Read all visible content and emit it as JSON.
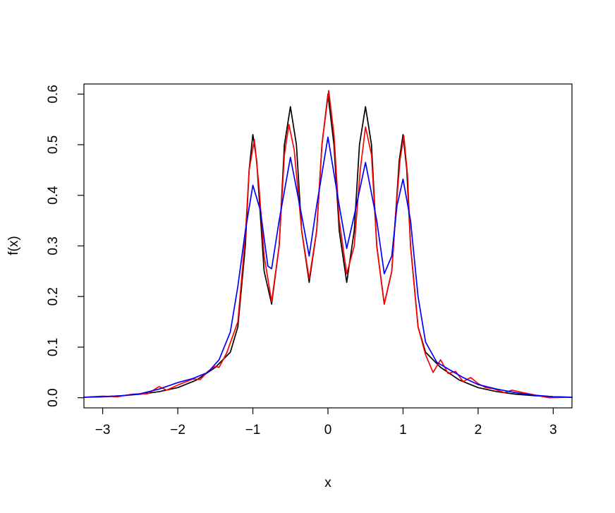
{
  "chart_data": {
    "type": "line",
    "title": "",
    "xlabel": "x",
    "ylabel": "f(x)",
    "xlim": [
      -3.25,
      3.25
    ],
    "ylim": [
      -0.02,
      0.62
    ],
    "xticks": [
      -3,
      -2,
      -1,
      0,
      1,
      2,
      3
    ],
    "xtick_labels": [
      "−3",
      "−2",
      "−1",
      "0",
      "1",
      "2",
      "3"
    ],
    "yticks": [
      0.0,
      0.1,
      0.2,
      0.3,
      0.4,
      0.5,
      0.6
    ],
    "ytick_labels": [
      "0.0",
      "0.1",
      "0.2",
      "0.3",
      "0.4",
      "0.5",
      "0.6"
    ],
    "grid": false,
    "legend": "none",
    "series": [
      {
        "color": "#000000",
        "points": [
          [
            -3.25,
            0.001
          ],
          [
            -3.0,
            0.002
          ],
          [
            -2.75,
            0.004
          ],
          [
            -2.5,
            0.007
          ],
          [
            -2.25,
            0.012
          ],
          [
            -2.0,
            0.02
          ],
          [
            -1.75,
            0.035
          ],
          [
            -1.5,
            0.06
          ],
          [
            -1.3,
            0.09
          ],
          [
            -1.2,
            0.14
          ],
          [
            -1.1,
            0.3
          ],
          [
            -1.05,
            0.45
          ],
          [
            -1.0,
            0.52
          ],
          [
            -0.95,
            0.47
          ],
          [
            -0.9,
            0.36
          ],
          [
            -0.85,
            0.25
          ],
          [
            -0.75,
            0.185
          ],
          [
            -0.65,
            0.3
          ],
          [
            -0.58,
            0.5
          ],
          [
            -0.5,
            0.575
          ],
          [
            -0.42,
            0.5
          ],
          [
            -0.35,
            0.33
          ],
          [
            -0.25,
            0.228
          ],
          [
            -0.15,
            0.33
          ],
          [
            -0.08,
            0.5
          ],
          [
            0.0,
            0.6
          ],
          [
            0.08,
            0.5
          ],
          [
            0.15,
            0.33
          ],
          [
            0.25,
            0.228
          ],
          [
            0.35,
            0.33
          ],
          [
            0.42,
            0.5
          ],
          [
            0.5,
            0.575
          ],
          [
            0.58,
            0.5
          ],
          [
            0.65,
            0.3
          ],
          [
            0.75,
            0.185
          ],
          [
            0.85,
            0.25
          ],
          [
            0.9,
            0.36
          ],
          [
            0.95,
            0.47
          ],
          [
            1.0,
            0.52
          ],
          [
            1.05,
            0.45
          ],
          [
            1.1,
            0.3
          ],
          [
            1.2,
            0.14
          ],
          [
            1.3,
            0.09
          ],
          [
            1.5,
            0.06
          ],
          [
            1.75,
            0.035
          ],
          [
            2.0,
            0.02
          ],
          [
            2.25,
            0.012
          ],
          [
            2.5,
            0.007
          ],
          [
            2.75,
            0.004
          ],
          [
            3.0,
            0.002
          ],
          [
            3.25,
            0.001
          ]
        ]
      },
      {
        "color": "#ff0000",
        "points": [
          [
            -3.25,
            0.001
          ],
          [
            -3.0,
            0.003
          ],
          [
            -2.8,
            0.002
          ],
          [
            -2.6,
            0.007
          ],
          [
            -2.4,
            0.008
          ],
          [
            -2.25,
            0.022
          ],
          [
            -2.15,
            0.015
          ],
          [
            -2.0,
            0.025
          ],
          [
            -1.8,
            0.037
          ],
          [
            -1.7,
            0.036
          ],
          [
            -1.6,
            0.052
          ],
          [
            -1.5,
            0.062
          ],
          [
            -1.45,
            0.06
          ],
          [
            -1.35,
            0.088
          ],
          [
            -1.2,
            0.15
          ],
          [
            -1.1,
            0.32
          ],
          [
            -1.05,
            0.45
          ],
          [
            -0.98,
            0.51
          ],
          [
            -0.92,
            0.42
          ],
          [
            -0.85,
            0.28
          ],
          [
            -0.75,
            0.19
          ],
          [
            -0.65,
            0.3
          ],
          [
            -0.58,
            0.48
          ],
          [
            -0.52,
            0.54
          ],
          [
            -0.45,
            0.49
          ],
          [
            -0.35,
            0.33
          ],
          [
            -0.25,
            0.235
          ],
          [
            -0.15,
            0.33
          ],
          [
            -0.08,
            0.5
          ],
          [
            0.01,
            0.607
          ],
          [
            0.08,
            0.52
          ],
          [
            0.15,
            0.35
          ],
          [
            0.25,
            0.245
          ],
          [
            0.35,
            0.3
          ],
          [
            0.43,
            0.45
          ],
          [
            0.5,
            0.535
          ],
          [
            0.58,
            0.48
          ],
          [
            0.65,
            0.3
          ],
          [
            0.75,
            0.185
          ],
          [
            0.85,
            0.25
          ],
          [
            0.9,
            0.36
          ],
          [
            0.96,
            0.47
          ],
          [
            1.01,
            0.518
          ],
          [
            1.06,
            0.44
          ],
          [
            1.1,
            0.3
          ],
          [
            1.2,
            0.14
          ],
          [
            1.3,
            0.085
          ],
          [
            1.4,
            0.05
          ],
          [
            1.5,
            0.075
          ],
          [
            1.6,
            0.048
          ],
          [
            1.7,
            0.052
          ],
          [
            1.8,
            0.032
          ],
          [
            1.9,
            0.04
          ],
          [
            2.0,
            0.028
          ],
          [
            2.1,
            0.02
          ],
          [
            2.2,
            0.018
          ],
          [
            2.35,
            0.01
          ],
          [
            2.45,
            0.015
          ],
          [
            2.6,
            0.01
          ],
          [
            2.8,
            0.004
          ],
          [
            2.95,
            0.0
          ],
          [
            3.25,
            0.001
          ]
        ]
      },
      {
        "color": "#0000ff",
        "points": [
          [
            -3.25,
            0.001
          ],
          [
            -3.0,
            0.002
          ],
          [
            -2.75,
            0.004
          ],
          [
            -2.5,
            0.008
          ],
          [
            -2.25,
            0.017
          ],
          [
            -2.0,
            0.03
          ],
          [
            -1.8,
            0.038
          ],
          [
            -1.6,
            0.05
          ],
          [
            -1.45,
            0.075
          ],
          [
            -1.3,
            0.13
          ],
          [
            -1.2,
            0.22
          ],
          [
            -1.1,
            0.33
          ],
          [
            -1.0,
            0.42
          ],
          [
            -0.9,
            0.37
          ],
          [
            -0.8,
            0.26
          ],
          [
            -0.75,
            0.255
          ],
          [
            -0.65,
            0.35
          ],
          [
            -0.5,
            0.475
          ],
          [
            -0.35,
            0.36
          ],
          [
            -0.25,
            0.28
          ],
          [
            -0.15,
            0.38
          ],
          [
            0.0,
            0.515
          ],
          [
            0.15,
            0.38
          ],
          [
            0.25,
            0.295
          ],
          [
            0.35,
            0.36
          ],
          [
            0.5,
            0.465
          ],
          [
            0.65,
            0.35
          ],
          [
            0.75,
            0.245
          ],
          [
            0.85,
            0.28
          ],
          [
            0.92,
            0.38
          ],
          [
            1.0,
            0.432
          ],
          [
            1.1,
            0.35
          ],
          [
            1.2,
            0.2
          ],
          [
            1.3,
            0.11
          ],
          [
            1.45,
            0.07
          ],
          [
            1.6,
            0.057
          ],
          [
            1.8,
            0.04
          ],
          [
            2.0,
            0.026
          ],
          [
            2.25,
            0.017
          ],
          [
            2.5,
            0.01
          ],
          [
            2.75,
            0.005
          ],
          [
            3.0,
            0.002
          ],
          [
            3.25,
            0.001
          ]
        ]
      }
    ]
  }
}
